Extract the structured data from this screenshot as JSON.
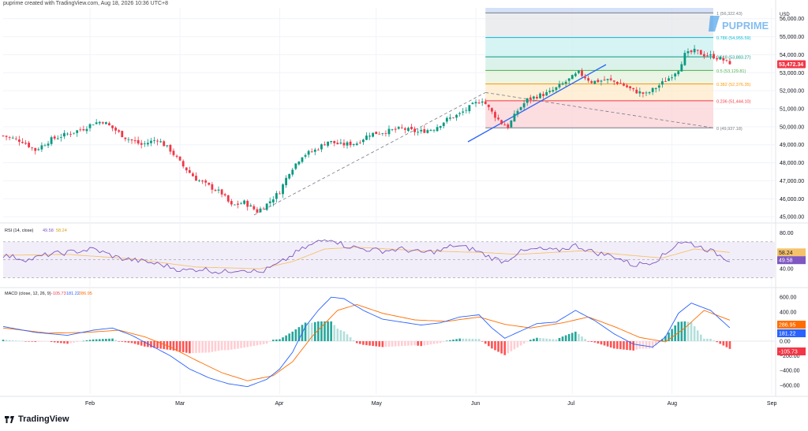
{
  "header": {
    "credit": "puprime created with TradingView.com, Aug 18, 2026 10:36 UTC+8"
  },
  "currency": "USD",
  "watermark": "PUPRIME",
  "branding": "TradingView",
  "colors": {
    "up": "#089981",
    "down": "#f23645",
    "rsi_line": "#7e57c2",
    "rsi_ma": "#f5c26b",
    "macd_line": "#2962ff",
    "signal_line": "#ff6d00",
    "trendline": "#2962ff",
    "last_price_bg": "#f23645"
  },
  "price_axis": {
    "labels": [
      "56,000.00",
      "55,000.00",
      "54,000.00",
      "53,000.00",
      "52,000.00",
      "51,000.00",
      "50,000.00",
      "49,000.00",
      "48,000.00",
      "47,000.00",
      "46,000.00",
      "45,000.00"
    ],
    "values": [
      56000,
      55000,
      54000,
      53000,
      52000,
      51000,
      50000,
      49000,
      48000,
      47000,
      46000,
      45000
    ],
    "last_price": "53,472.34"
  },
  "fibonacci": {
    "levels": [
      {
        "label": "1 (56,322.43)",
        "value": 56322.43,
        "color": "#787b86"
      },
      {
        "label": "0.786 (54,955.59)",
        "value": 54955.59,
        "color": "#00bcd4"
      },
      {
        "label": "0.618 (53,883.27)",
        "value": 53883.27,
        "color": "#089981"
      },
      {
        "label": "0.5 (53,129.81)",
        "value": 53129.81,
        "color": "#4caf50"
      },
      {
        "label": "0.382 (52,376.35)",
        "value": 52376.35,
        "color": "#ff9800"
      },
      {
        "label": "0.236 (51,444.10)",
        "value": 51444.1,
        "color": "#f23645"
      },
      {
        "label": "0 (49,937.18)",
        "value": 49937.18,
        "color": "#787b86"
      }
    ]
  },
  "rsi": {
    "legend_title": "RSI (14, close)",
    "rsi_value": "49.58",
    "ma_value": "58.24",
    "axis_labels": [
      "80.00",
      "40.00"
    ],
    "axis_values": [
      80,
      40
    ],
    "upper_band": 70,
    "mid_band": 50,
    "lower_band": 30
  },
  "macd": {
    "legend_title": "MACD (close, 12, 26, 9)",
    "hist_value": "-105.73",
    "macd_value": "181.22",
    "signal_value": "286.95",
    "axis_labels": [
      "600.00",
      "400.00",
      "200.00",
      "0.00",
      "−200.00",
      "−400.00",
      "−600.00"
    ],
    "axis_values": [
      600,
      400,
      200,
      0,
      -200,
      -400,
      -600
    ]
  },
  "time_axis": {
    "labels": [
      "Feb",
      "Mar",
      "Apr",
      "May",
      "Jun",
      "Jul",
      "Aug",
      "Sep"
    ]
  },
  "chart_data": {
    "type": "candlestick",
    "title": "",
    "ylim": [
      44700,
      56600
    ],
    "x_range_days": [
      0,
      240
    ],
    "month_ticks": [
      {
        "label": "Feb",
        "day": 27
      },
      {
        "label": "Mar",
        "day": 55
      },
      {
        "label": "Apr",
        "day": 86
      },
      {
        "label": "May",
        "day": 116
      },
      {
        "label": "Jun",
        "day": 147
      },
      {
        "label": "Jul",
        "day": 177
      },
      {
        "label": "Aug",
        "day": 208
      },
      {
        "label": "Sep",
        "day": 239
      }
    ],
    "close_anchors": [
      [
        0,
        49500
      ],
      [
        6,
        49200
      ],
      [
        10,
        48700
      ],
      [
        15,
        49300
      ],
      [
        20,
        49600
      ],
      [
        25,
        49900
      ],
      [
        28,
        50200
      ],
      [
        31,
        50300
      ],
      [
        35,
        49800
      ],
      [
        38,
        49400
      ],
      [
        43,
        49000
      ],
      [
        48,
        49300
      ],
      [
        52,
        48700
      ],
      [
        56,
        47800
      ],
      [
        60,
        47100
      ],
      [
        64,
        46700
      ],
      [
        68,
        46300
      ],
      [
        71,
        45600
      ],
      [
        75,
        45800
      ],
      [
        79,
        45300
      ],
      [
        82,
        45700
      ],
      [
        86,
        46400
      ],
      [
        89,
        47500
      ],
      [
        93,
        48400
      ],
      [
        97,
        48700
      ],
      [
        101,
        49200
      ],
      [
        105,
        49000
      ],
      [
        110,
        49100
      ],
      [
        114,
        49600
      ],
      [
        118,
        49700
      ],
      [
        124,
        49900
      ],
      [
        129,
        49700
      ],
      [
        134,
        49900
      ],
      [
        138,
        50400
      ],
      [
        142,
        50700
      ],
      [
        146,
        51200
      ],
      [
        149,
        51500
      ],
      [
        152,
        50800
      ],
      [
        155,
        50200
      ],
      [
        157,
        50000
      ],
      [
        160,
        50900
      ],
      [
        163,
        51500
      ],
      [
        166,
        51700
      ],
      [
        170,
        51900
      ],
      [
        175,
        52500
      ],
      [
        179,
        53000
      ],
      [
        183,
        52500
      ],
      [
        188,
        52600
      ],
      [
        192,
        52400
      ],
      [
        196,
        52000
      ],
      [
        200,
        51800
      ],
      [
        204,
        52300
      ],
      [
        207,
        52700
      ],
      [
        210,
        53200
      ],
      [
        212,
        54000
      ],
      [
        215,
        54200
      ],
      [
        218,
        54000
      ],
      [
        221,
        53900
      ],
      [
        224,
        53700
      ],
      [
        226,
        53472
      ]
    ],
    "rsi_anchors": [
      [
        0,
        55
      ],
      [
        8,
        50
      ],
      [
        14,
        56
      ],
      [
        20,
        58
      ],
      [
        28,
        62
      ],
      [
        36,
        52
      ],
      [
        44,
        48
      ],
      [
        50,
        44
      ],
      [
        56,
        38
      ],
      [
        62,
        40
      ],
      [
        68,
        36
      ],
      [
        74,
        40
      ],
      [
        80,
        36
      ],
      [
        86,
        46
      ],
      [
        92,
        60
      ],
      [
        98,
        70
      ],
      [
        102,
        74
      ],
      [
        106,
        66
      ],
      [
        112,
        62
      ],
      [
        118,
        60
      ],
      [
        124,
        62
      ],
      [
        130,
        58
      ],
      [
        136,
        60
      ],
      [
        140,
        66
      ],
      [
        146,
        62
      ],
      [
        152,
        52
      ],
      [
        156,
        48
      ],
      [
        160,
        58
      ],
      [
        166,
        62
      ],
      [
        172,
        60
      ],
      [
        178,
        66
      ],
      [
        184,
        58
      ],
      [
        190,
        54
      ],
      [
        196,
        44
      ],
      [
        202,
        48
      ],
      [
        206,
        56
      ],
      [
        210,
        70
      ],
      [
        214,
        68
      ],
      [
        220,
        60
      ],
      [
        226,
        49.58
      ]
    ],
    "rsi_ma_anchors": [
      [
        0,
        55
      ],
      [
        20,
        56
      ],
      [
        40,
        51
      ],
      [
        60,
        42
      ],
      [
        80,
        40
      ],
      [
        90,
        48
      ],
      [
        100,
        62
      ],
      [
        110,
        64
      ],
      [
        130,
        60
      ],
      [
        150,
        58
      ],
      [
        160,
        56
      ],
      [
        180,
        60
      ],
      [
        195,
        55
      ],
      [
        205,
        52
      ],
      [
        215,
        62
      ],
      [
        226,
        58.24
      ]
    ],
    "macd_anchors": [
      [
        0,
        200
      ],
      [
        10,
        120
      ],
      [
        20,
        80
      ],
      [
        28,
        150
      ],
      [
        34,
        180
      ],
      [
        40,
        80
      ],
      [
        46,
        -60
      ],
      [
        52,
        -200
      ],
      [
        58,
        -380
      ],
      [
        64,
        -500
      ],
      [
        70,
        -580
      ],
      [
        76,
        -620
      ],
      [
        82,
        -520
      ],
      [
        86,
        -380
      ],
      [
        90,
        -150
      ],
      [
        94,
        200
      ],
      [
        98,
        420
      ],
      [
        102,
        600
      ],
      [
        106,
        580
      ],
      [
        112,
        420
      ],
      [
        118,
        300
      ],
      [
        124,
        260
      ],
      [
        130,
        220
      ],
      [
        136,
        250
      ],
      [
        142,
        330
      ],
      [
        148,
        360
      ],
      [
        152,
        180
      ],
      [
        156,
        40
      ],
      [
        160,
        120
      ],
      [
        166,
        240
      ],
      [
        172,
        260
      ],
      [
        178,
        420
      ],
      [
        184,
        280
      ],
      [
        190,
        100
      ],
      [
        196,
        -40
      ],
      [
        202,
        -80
      ],
      [
        206,
        60
      ],
      [
        210,
        380
      ],
      [
        214,
        520
      ],
      [
        220,
        420
      ],
      [
        226,
        181.22
      ]
    ],
    "signal_anchors": [
      [
        0,
        180
      ],
      [
        14,
        110
      ],
      [
        26,
        120
      ],
      [
        36,
        150
      ],
      [
        44,
        60
      ],
      [
        52,
        -80
      ],
      [
        60,
        -260
      ],
      [
        68,
        -430
      ],
      [
        76,
        -540
      ],
      [
        84,
        -470
      ],
      [
        90,
        -280
      ],
      [
        96,
        60
      ],
      [
        104,
        420
      ],
      [
        110,
        500
      ],
      [
        118,
        380
      ],
      [
        128,
        290
      ],
      [
        138,
        270
      ],
      [
        148,
        330
      ],
      [
        156,
        230
      ],
      [
        164,
        180
      ],
      [
        174,
        250
      ],
      [
        182,
        330
      ],
      [
        190,
        200
      ],
      [
        198,
        50
      ],
      [
        206,
        -10
      ],
      [
        212,
        180
      ],
      [
        218,
        420
      ],
      [
        226,
        286.95
      ]
    ]
  }
}
